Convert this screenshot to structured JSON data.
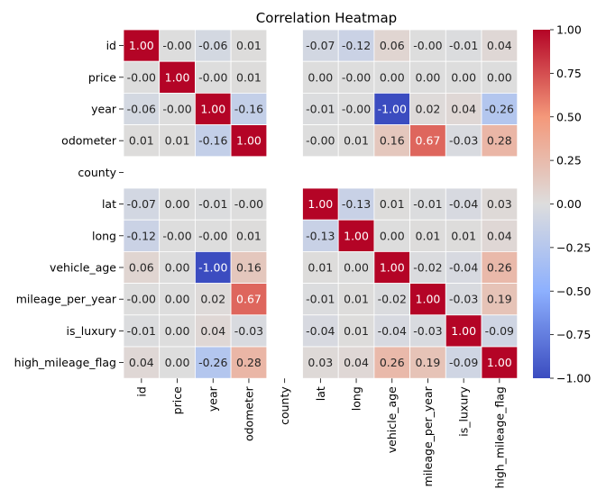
{
  "chart_data": {
    "type": "heatmap",
    "title": "Correlation Heatmap",
    "xlabel": "",
    "ylabel": "",
    "labels": [
      "id",
      "price",
      "year",
      "odometer",
      "county",
      "lat",
      "long",
      "vehicle_age",
      "mileage_per_year",
      "is_luxury",
      "high_mileage_flag"
    ],
    "value_labels": [
      [
        "1.00",
        "-0.00",
        "-0.06",
        "0.01",
        "",
        "-0.07",
        "-0.12",
        "0.06",
        "-0.00",
        "-0.01",
        "0.04"
      ],
      [
        "-0.00",
        "1.00",
        "-0.00",
        "0.01",
        "",
        "0.00",
        "-0.00",
        "0.00",
        "0.00",
        "0.00",
        "0.00"
      ],
      [
        "-0.06",
        "-0.00",
        "1.00",
        "-0.16",
        "",
        "-0.01",
        "-0.00",
        "-1.00",
        "0.02",
        "0.04",
        "-0.26"
      ],
      [
        "0.01",
        "0.01",
        "-0.16",
        "1.00",
        "",
        "-0.00",
        "0.01",
        "0.16",
        "0.67",
        "-0.03",
        "0.28"
      ],
      [
        "",
        "",
        "",
        "",
        "",
        "",
        "",
        "",
        "",
        "",
        ""
      ],
      [
        "-0.07",
        "0.00",
        "-0.01",
        "-0.00",
        "",
        "1.00",
        "-0.13",
        "0.01",
        "-0.01",
        "-0.04",
        "0.03"
      ],
      [
        "-0.12",
        "-0.00",
        "-0.00",
        "0.01",
        "",
        "-0.13",
        "1.00",
        "0.00",
        "0.01",
        "0.01",
        "0.04"
      ],
      [
        "0.06",
        "0.00",
        "-1.00",
        "0.16",
        "",
        "0.01",
        "0.00",
        "1.00",
        "-0.02",
        "-0.04",
        "0.26"
      ],
      [
        "-0.00",
        "0.00",
        "0.02",
        "0.67",
        "",
        "-0.01",
        "0.01",
        "-0.02",
        "1.00",
        "-0.03",
        "0.19"
      ],
      [
        "-0.01",
        "0.00",
        "0.04",
        "-0.03",
        "",
        "-0.04",
        "0.01",
        "-0.04",
        "-0.03",
        "1.00",
        "-0.09"
      ],
      [
        "0.04",
        "0.00",
        "-0.26",
        "0.28",
        "",
        "0.03",
        "0.04",
        "0.26",
        "0.19",
        "-0.09",
        "1.00"
      ]
    ],
    "vmin": -1.0,
    "vmax": 1.0,
    "colormap": "coolwarm",
    "colorbar_ticks": [
      "1.00",
      "0.75",
      "0.50",
      "0.25",
      "0.00",
      "−0.25",
      "−0.50",
      "−0.75",
      "−1.00"
    ],
    "colorbar_tick_values": [
      1.0,
      0.75,
      0.5,
      0.25,
      0.0,
      -0.25,
      -0.5,
      -0.75,
      -1.0
    ]
  }
}
